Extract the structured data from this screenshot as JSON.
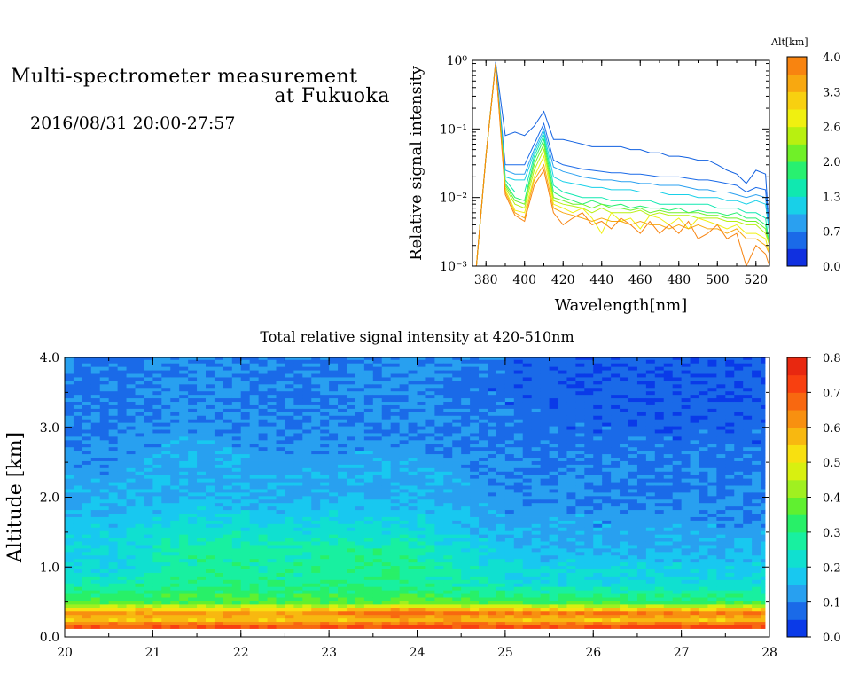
{
  "header": {
    "line1": "Multi-spectrometer measurement",
    "line2": "at Fukuoka",
    "line3": "2016/08/31 20:00-27:57"
  },
  "chart_data": [
    {
      "type": "line",
      "title": "",
      "xlabel": "Wavelength[nm]",
      "ylabel": "Relative signal intensity",
      "xlim": [
        373,
        527
      ],
      "ylim": [
        0.001,
        1
      ],
      "yscale": "log",
      "xticks": [
        "380",
        "400",
        "420",
        "440",
        "460",
        "480",
        "500",
        "520"
      ],
      "yticks": [
        "10⁻³",
        "10⁻²",
        "10⁻¹",
        "10⁰"
      ],
      "colorbar": {
        "title": "Alt[km]",
        "labels": [
          "0.0",
          "0.7",
          "1.3",
          "2.0",
          "2.6",
          "3.3",
          "4.0"
        ],
        "colors": [
          "#1030e0",
          "#1a6ae8",
          "#2aa0f0",
          "#18d0e8",
          "#10e8b0",
          "#28f070",
          "#70f028",
          "#b8f010",
          "#f0f010",
          "#f8d010",
          "#f8a810",
          "#f88410"
        ]
      },
      "x": [
        373,
        375,
        380,
        385,
        390,
        395,
        400,
        405,
        410,
        415,
        420,
        425,
        430,
        435,
        440,
        445,
        450,
        455,
        460,
        465,
        470,
        475,
        480,
        485,
        490,
        495,
        500,
        505,
        510,
        515,
        520,
        525,
        527
      ],
      "series": [
        {
          "color": "#1060e0",
          "values": [
            0.001,
            0.001,
            0.04,
            0.95,
            0.08,
            0.09,
            0.08,
            0.11,
            0.18,
            0.07,
            0.07,
            0.065,
            0.06,
            0.055,
            0.055,
            0.055,
            0.055,
            0.05,
            0.05,
            0.045,
            0.045,
            0.04,
            0.04,
            0.038,
            0.035,
            0.035,
            0.03,
            0.025,
            0.022,
            0.016,
            0.025,
            0.022,
            0.003
          ]
        },
        {
          "color": "#1a6ae8",
          "values": [
            0.001,
            0.001,
            0.04,
            0.9,
            0.03,
            0.03,
            0.03,
            0.06,
            0.12,
            0.035,
            0.03,
            0.028,
            0.026,
            0.025,
            0.024,
            0.023,
            0.023,
            0.022,
            0.022,
            0.021,
            0.02,
            0.02,
            0.02,
            0.019,
            0.018,
            0.018,
            0.017,
            0.016,
            0.015,
            0.012,
            0.014,
            0.013,
            0.003
          ]
        },
        {
          "color": "#2aa0f0",
          "values": [
            0.001,
            0.001,
            0.04,
            0.9,
            0.025,
            0.022,
            0.022,
            0.05,
            0.1,
            0.028,
            0.024,
            0.022,
            0.02,
            0.019,
            0.018,
            0.018,
            0.017,
            0.017,
            0.016,
            0.016,
            0.015,
            0.015,
            0.015,
            0.014,
            0.013,
            0.013,
            0.012,
            0.012,
            0.011,
            0.01,
            0.011,
            0.01,
            0.003
          ]
        },
        {
          "color": "#18d0e8",
          "values": [
            0.001,
            0.001,
            0.04,
            0.9,
            0.02,
            0.018,
            0.018,
            0.045,
            0.09,
            0.02,
            0.017,
            0.016,
            0.015,
            0.014,
            0.014,
            0.013,
            0.013,
            0.013,
            0.012,
            0.012,
            0.012,
            0.011,
            0.011,
            0.011,
            0.01,
            0.01,
            0.01,
            0.009,
            0.009,
            0.008,
            0.009,
            0.008,
            0.003
          ]
        },
        {
          "color": "#10e8b0",
          "values": [
            0.001,
            0.001,
            0.04,
            0.9,
            0.018,
            0.012,
            0.012,
            0.04,
            0.08,
            0.015,
            0.012,
            0.011,
            0.01,
            0.01,
            0.01,
            0.009,
            0.009,
            0.009,
            0.009,
            0.009,
            0.008,
            0.008,
            0.008,
            0.008,
            0.008,
            0.008,
            0.007,
            0.007,
            0.007,
            0.006,
            0.006,
            0.005,
            0.002
          ]
        },
        {
          "color": "#28f070",
          "values": [
            0.001,
            0.001,
            0.04,
            0.9,
            0.016,
            0.01,
            0.009,
            0.035,
            0.07,
            0.012,
            0.01,
            0.009,
            0.008,
            0.009,
            0.008,
            0.0075,
            0.008,
            0.007,
            0.0075,
            0.007,
            0.007,
            0.0065,
            0.007,
            0.006,
            0.0065,
            0.006,
            0.006,
            0.0055,
            0.006,
            0.005,
            0.005,
            0.004,
            0.002
          ]
        },
        {
          "color": "#70f028",
          "values": [
            0.001,
            0.001,
            0.04,
            0.9,
            0.015,
            0.009,
            0.008,
            0.03,
            0.06,
            0.01,
            0.009,
            0.008,
            0.008,
            0.007,
            0.008,
            0.007,
            0.007,
            0.0065,
            0.007,
            0.006,
            0.0065,
            0.006,
            0.006,
            0.006,
            0.006,
            0.0055,
            0.0055,
            0.005,
            0.005,
            0.0045,
            0.0045,
            0.0035,
            0.002
          ]
        },
        {
          "color": "#b8f010",
          "values": [
            0.001,
            0.001,
            0.04,
            0.9,
            0.014,
            0.008,
            0.007,
            0.025,
            0.05,
            0.009,
            0.008,
            0.0075,
            0.007,
            0.006,
            0.007,
            0.006,
            0.006,
            0.006,
            0.0065,
            0.0055,
            0.006,
            0.0055,
            0.0055,
            0.0055,
            0.005,
            0.005,
            0.005,
            0.0045,
            0.0045,
            0.004,
            0.004,
            0.003,
            0.002
          ]
        },
        {
          "color": "#f0f010",
          "values": [
            0.001,
            0.001,
            0.04,
            0.9,
            0.013,
            0.0065,
            0.006,
            0.02,
            0.04,
            0.008,
            0.007,
            0.006,
            0.007,
            0.005,
            0.003,
            0.006,
            0.0045,
            0.005,
            0.0035,
            0.0055,
            0.005,
            0.004,
            0.005,
            0.0035,
            0.005,
            0.0045,
            0.004,
            0.0035,
            0.004,
            0.003,
            0.003,
            0.0025,
            0.0015
          ]
        },
        {
          "color": "#f8a810",
          "values": [
            0.001,
            0.001,
            0.04,
            0.9,
            0.012,
            0.006,
            0.005,
            0.018,
            0.03,
            0.007,
            0.006,
            0.0055,
            0.005,
            0.0045,
            0.005,
            0.0045,
            0.0045,
            0.004,
            0.0045,
            0.004,
            0.004,
            0.0035,
            0.004,
            0.0035,
            0.004,
            0.0035,
            0.0035,
            0.003,
            0.0035,
            0.0025,
            0.0025,
            0.002,
            0.0015
          ]
        },
        {
          "color": "#f88410",
          "values": [
            0.001,
            0.001,
            0.04,
            0.9,
            0.011,
            0.0055,
            0.0045,
            0.015,
            0.025,
            0.006,
            0.004,
            0.005,
            0.006,
            0.004,
            0.0045,
            0.0035,
            0.005,
            0.004,
            0.003,
            0.0045,
            0.003,
            0.004,
            0.003,
            0.0045,
            0.0025,
            0.003,
            0.004,
            0.0025,
            0.003,
            0.001,
            0.002,
            0.0015,
            0.001
          ]
        }
      ]
    },
    {
      "type": "heatmap",
      "title": "Total relative signal intensity at 420-510nm",
      "xlabel": "",
      "ylabel": "Altitude [km]",
      "xlim": [
        20,
        28
      ],
      "ylim": [
        0,
        4
      ],
      "xticks": [
        "20",
        "21",
        "22",
        "23",
        "24",
        "25",
        "26",
        "27",
        "28"
      ],
      "yticks": [
        "0.0",
        "1.0",
        "2.0",
        "3.0",
        "4.0"
      ],
      "data_end_hour": 27.95,
      "altitude_km": [
        0.15,
        0.25,
        0.35,
        0.5,
        0.75,
        1.0,
        1.25,
        1.5,
        2.0,
        2.5,
        3.0,
        3.5,
        4.0
      ],
      "hour_groups": [
        {
          "hours": "20.0-21.0",
          "values": [
            0.7,
            0.55,
            0.62,
            0.35,
            0.26,
            0.2,
            0.19,
            0.18,
            0.14,
            0.12,
            0.1,
            0.09,
            0.09
          ]
        },
        {
          "hours": "21.0-22.0",
          "values": [
            0.7,
            0.55,
            0.62,
            0.36,
            0.3,
            0.28,
            0.28,
            0.24,
            0.15,
            0.15,
            0.12,
            0.11,
            0.12
          ]
        },
        {
          "hours": "22.0-23.0",
          "values": [
            0.7,
            0.55,
            0.6,
            0.35,
            0.28,
            0.27,
            0.27,
            0.22,
            0.14,
            0.12,
            0.1,
            0.09,
            0.09
          ]
        },
        {
          "hours": "23.0-24.5",
          "values": [
            0.72,
            0.58,
            0.68,
            0.37,
            0.3,
            0.3,
            0.28,
            0.22,
            0.15,
            0.14,
            0.11,
            0.1,
            0.12
          ]
        },
        {
          "hours": "24.5-26.0",
          "values": [
            0.72,
            0.56,
            0.66,
            0.34,
            0.22,
            0.18,
            0.16,
            0.14,
            0.11,
            0.1,
            0.08,
            0.07,
            0.07
          ]
        },
        {
          "hours": "26.0-27.95",
          "values": [
            0.72,
            0.56,
            0.66,
            0.32,
            0.22,
            0.18,
            0.15,
            0.13,
            0.1,
            0.09,
            0.07,
            0.06,
            0.06
          ]
        }
      ],
      "colorbar": {
        "labels": [
          "0.0",
          "0.1",
          "0.2",
          "0.3",
          "0.4",
          "0.5",
          "0.6",
          "0.7",
          "0.8"
        ],
        "range": [
          0,
          0.8
        ],
        "colors": [
          "#0a3ae8",
          "#1a6ae8",
          "#28a0f0",
          "#18c8f0",
          "#10e0d0",
          "#18f0a0",
          "#28f068",
          "#60f030",
          "#a0f020",
          "#d8f010",
          "#f8e010",
          "#f8b810",
          "#f89010",
          "#f86810",
          "#f84010",
          "#e82810"
        ]
      }
    }
  ]
}
